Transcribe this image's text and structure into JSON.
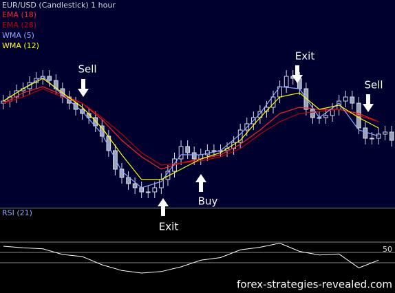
{
  "chart_data": {
    "type": "candlestick",
    "title": "EUR/USD (Candlestick)   1 hour",
    "ylim": [
      0,
      100
    ],
    "color": "#d6dbe6",
    "candles": {
      "open": [
        50,
        51,
        53,
        56,
        57,
        60,
        62,
        63,
        61,
        57,
        53,
        50,
        47,
        45,
        43,
        39,
        34,
        27,
        18,
        14,
        11,
        9,
        7,
        7,
        9,
        13,
        17,
        23,
        29,
        26,
        23,
        25,
        27,
        27,
        27,
        28,
        31,
        37,
        40,
        43,
        46,
        48,
        53,
        58,
        63,
        62,
        57,
        47,
        43,
        43,
        44,
        47,
        51,
        53,
        50,
        38,
        33,
        33,
        35,
        36
      ],
      "high": [
        54,
        56,
        59,
        60,
        63,
        65,
        66,
        66,
        64,
        60,
        56,
        53,
        50,
        48,
        46,
        42,
        37,
        30,
        21,
        17,
        14,
        12,
        10,
        12,
        16,
        20,
        26,
        32,
        32,
        29,
        28,
        30,
        30,
        30,
        31,
        34,
        40,
        43,
        46,
        49,
        51,
        56,
        61,
        66,
        66,
        65,
        60,
        50,
        46,
        47,
        50,
        54,
        56,
        56,
        53,
        41,
        36,
        38,
        39,
        39
      ],
      "low": [
        47,
        48,
        50,
        53,
        54,
        57,
        59,
        58,
        54,
        50,
        47,
        44,
        42,
        40,
        36,
        31,
        24,
        15,
        11,
        8,
        6,
        4,
        4,
        4,
        6,
        10,
        14,
        20,
        23,
        20,
        20,
        22,
        24,
        24,
        24,
        25,
        28,
        34,
        37,
        40,
        43,
        45,
        50,
        55,
        59,
        54,
        44,
        40,
        40,
        40,
        41,
        44,
        48,
        47,
        35,
        30,
        30,
        30,
        32,
        29
      ],
      "close": [
        51,
        53,
        56,
        57,
        60,
        62,
        63,
        61,
        57,
        53,
        50,
        47,
        45,
        43,
        39,
        34,
        27,
        18,
        14,
        11,
        9,
        7,
        7,
        9,
        13,
        17,
        23,
        29,
        26,
        23,
        25,
        27,
        27,
        27,
        28,
        31,
        37,
        40,
        43,
        46,
        48,
        53,
        58,
        63,
        62,
        57,
        47,
        43,
        43,
        44,
        47,
        51,
        53,
        50,
        38,
        33,
        33,
        35,
        36,
        32
      ]
    },
    "series": [
      {
        "name": "EMA (18)",
        "color": "#ff2020",
        "x": [
          0,
          3,
          6,
          9,
          12,
          15,
          18,
          21,
          24,
          27,
          30,
          33,
          36,
          39,
          42,
          45,
          48,
          51,
          54,
          57
        ],
        "values": [
          50,
          55,
          58,
          54,
          50,
          42,
          32,
          24,
          18,
          21,
          23,
          25,
          30,
          37,
          45,
          48,
          47,
          47,
          45,
          41
        ]
      },
      {
        "name": "EMA (28)",
        "color": "#c00000",
        "x": [
          0,
          3,
          6,
          9,
          12,
          15,
          18,
          21,
          24,
          27,
          30,
          33,
          36,
          39,
          42,
          45,
          48,
          51,
          54,
          57
        ],
        "values": [
          50,
          53,
          57,
          53,
          50,
          43,
          35,
          26,
          20,
          21,
          22,
          24,
          28,
          35,
          41,
          45,
          46,
          47,
          44,
          41
        ]
      },
      {
        "name": "WMA (5)",
        "color": "#8fa8ff",
        "x": [
          0,
          3,
          6,
          9,
          12,
          15,
          18,
          21,
          24,
          27,
          30,
          33,
          36,
          39,
          42,
          45,
          48,
          51,
          54,
          57
        ],
        "values": [
          51,
          57,
          63,
          54,
          46,
          35,
          17,
          9,
          12,
          25,
          25,
          27,
          35,
          45,
          58,
          57,
          43,
          50,
          37,
          34
        ]
      },
      {
        "name": "WMA (12)",
        "color": "#ffff00",
        "x": [
          0,
          3,
          6,
          9,
          12,
          15,
          18,
          21,
          24,
          27,
          30,
          33,
          36,
          39,
          42,
          45,
          48,
          51,
          54,
          57
        ],
        "values": [
          51,
          57,
          62,
          55,
          48,
          38,
          25,
          13,
          13,
          18,
          23,
          26,
          32,
          43,
          53,
          55,
          47,
          49,
          43,
          38
        ]
      }
    ],
    "rsi": {
      "type": "line",
      "title": "RSI (21)",
      "color": "#ffffff",
      "ylim": [
        0,
        100
      ],
      "yticks": [
        50
      ],
      "levels": [
        30,
        70
      ],
      "x": [
        0,
        3,
        6,
        9,
        12,
        15,
        18,
        21,
        24,
        27,
        30,
        33,
        36,
        39,
        42,
        45,
        48,
        51,
        54,
        57
      ],
      "values": [
        62,
        59,
        57,
        46,
        42,
        26,
        15,
        10,
        13,
        22,
        35,
        40,
        55,
        60,
        68,
        52,
        45,
        47,
        20,
        35
      ]
    },
    "annotations": [
      "Sell",
      "Exit",
      "Buy",
      "Exit",
      "Sell"
    ],
    "watermark": "forex-strategies-revealed.com"
  }
}
